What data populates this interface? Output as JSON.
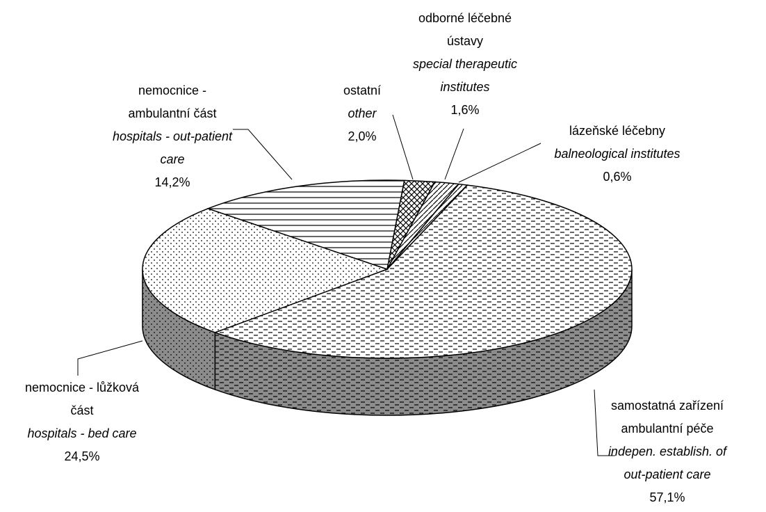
{
  "chart_data": {
    "type": "pie",
    "categories": [
      "lázeňské léčebny",
      "samostatná zařízení ambulantní péče",
      "nemocnice - lůžková část",
      "nemocnice - ambulantní část",
      "ostatní",
      "odborné léčebné ústavy"
    ],
    "categories_en": [
      "balneological institutes",
      "indepen. establish. of out-patient care",
      "hospitals - bed care",
      "hospitals - out-patient care",
      "other",
      "special therapeutic institutes"
    ],
    "values": [
      0.6,
      57.1,
      24.5,
      14.2,
      2.0,
      1.6
    ],
    "value_labels": [
      "0,6%",
      "57,1%",
      "24,5%",
      "14,2%",
      "2,0%",
      "1,6%"
    ],
    "patterns": [
      "diagonal",
      "dashes",
      "dots",
      "horizontal",
      "crosshatch",
      "diagonal"
    ],
    "color": "#ffffff",
    "side_color": "#8c8c8c"
  }
}
